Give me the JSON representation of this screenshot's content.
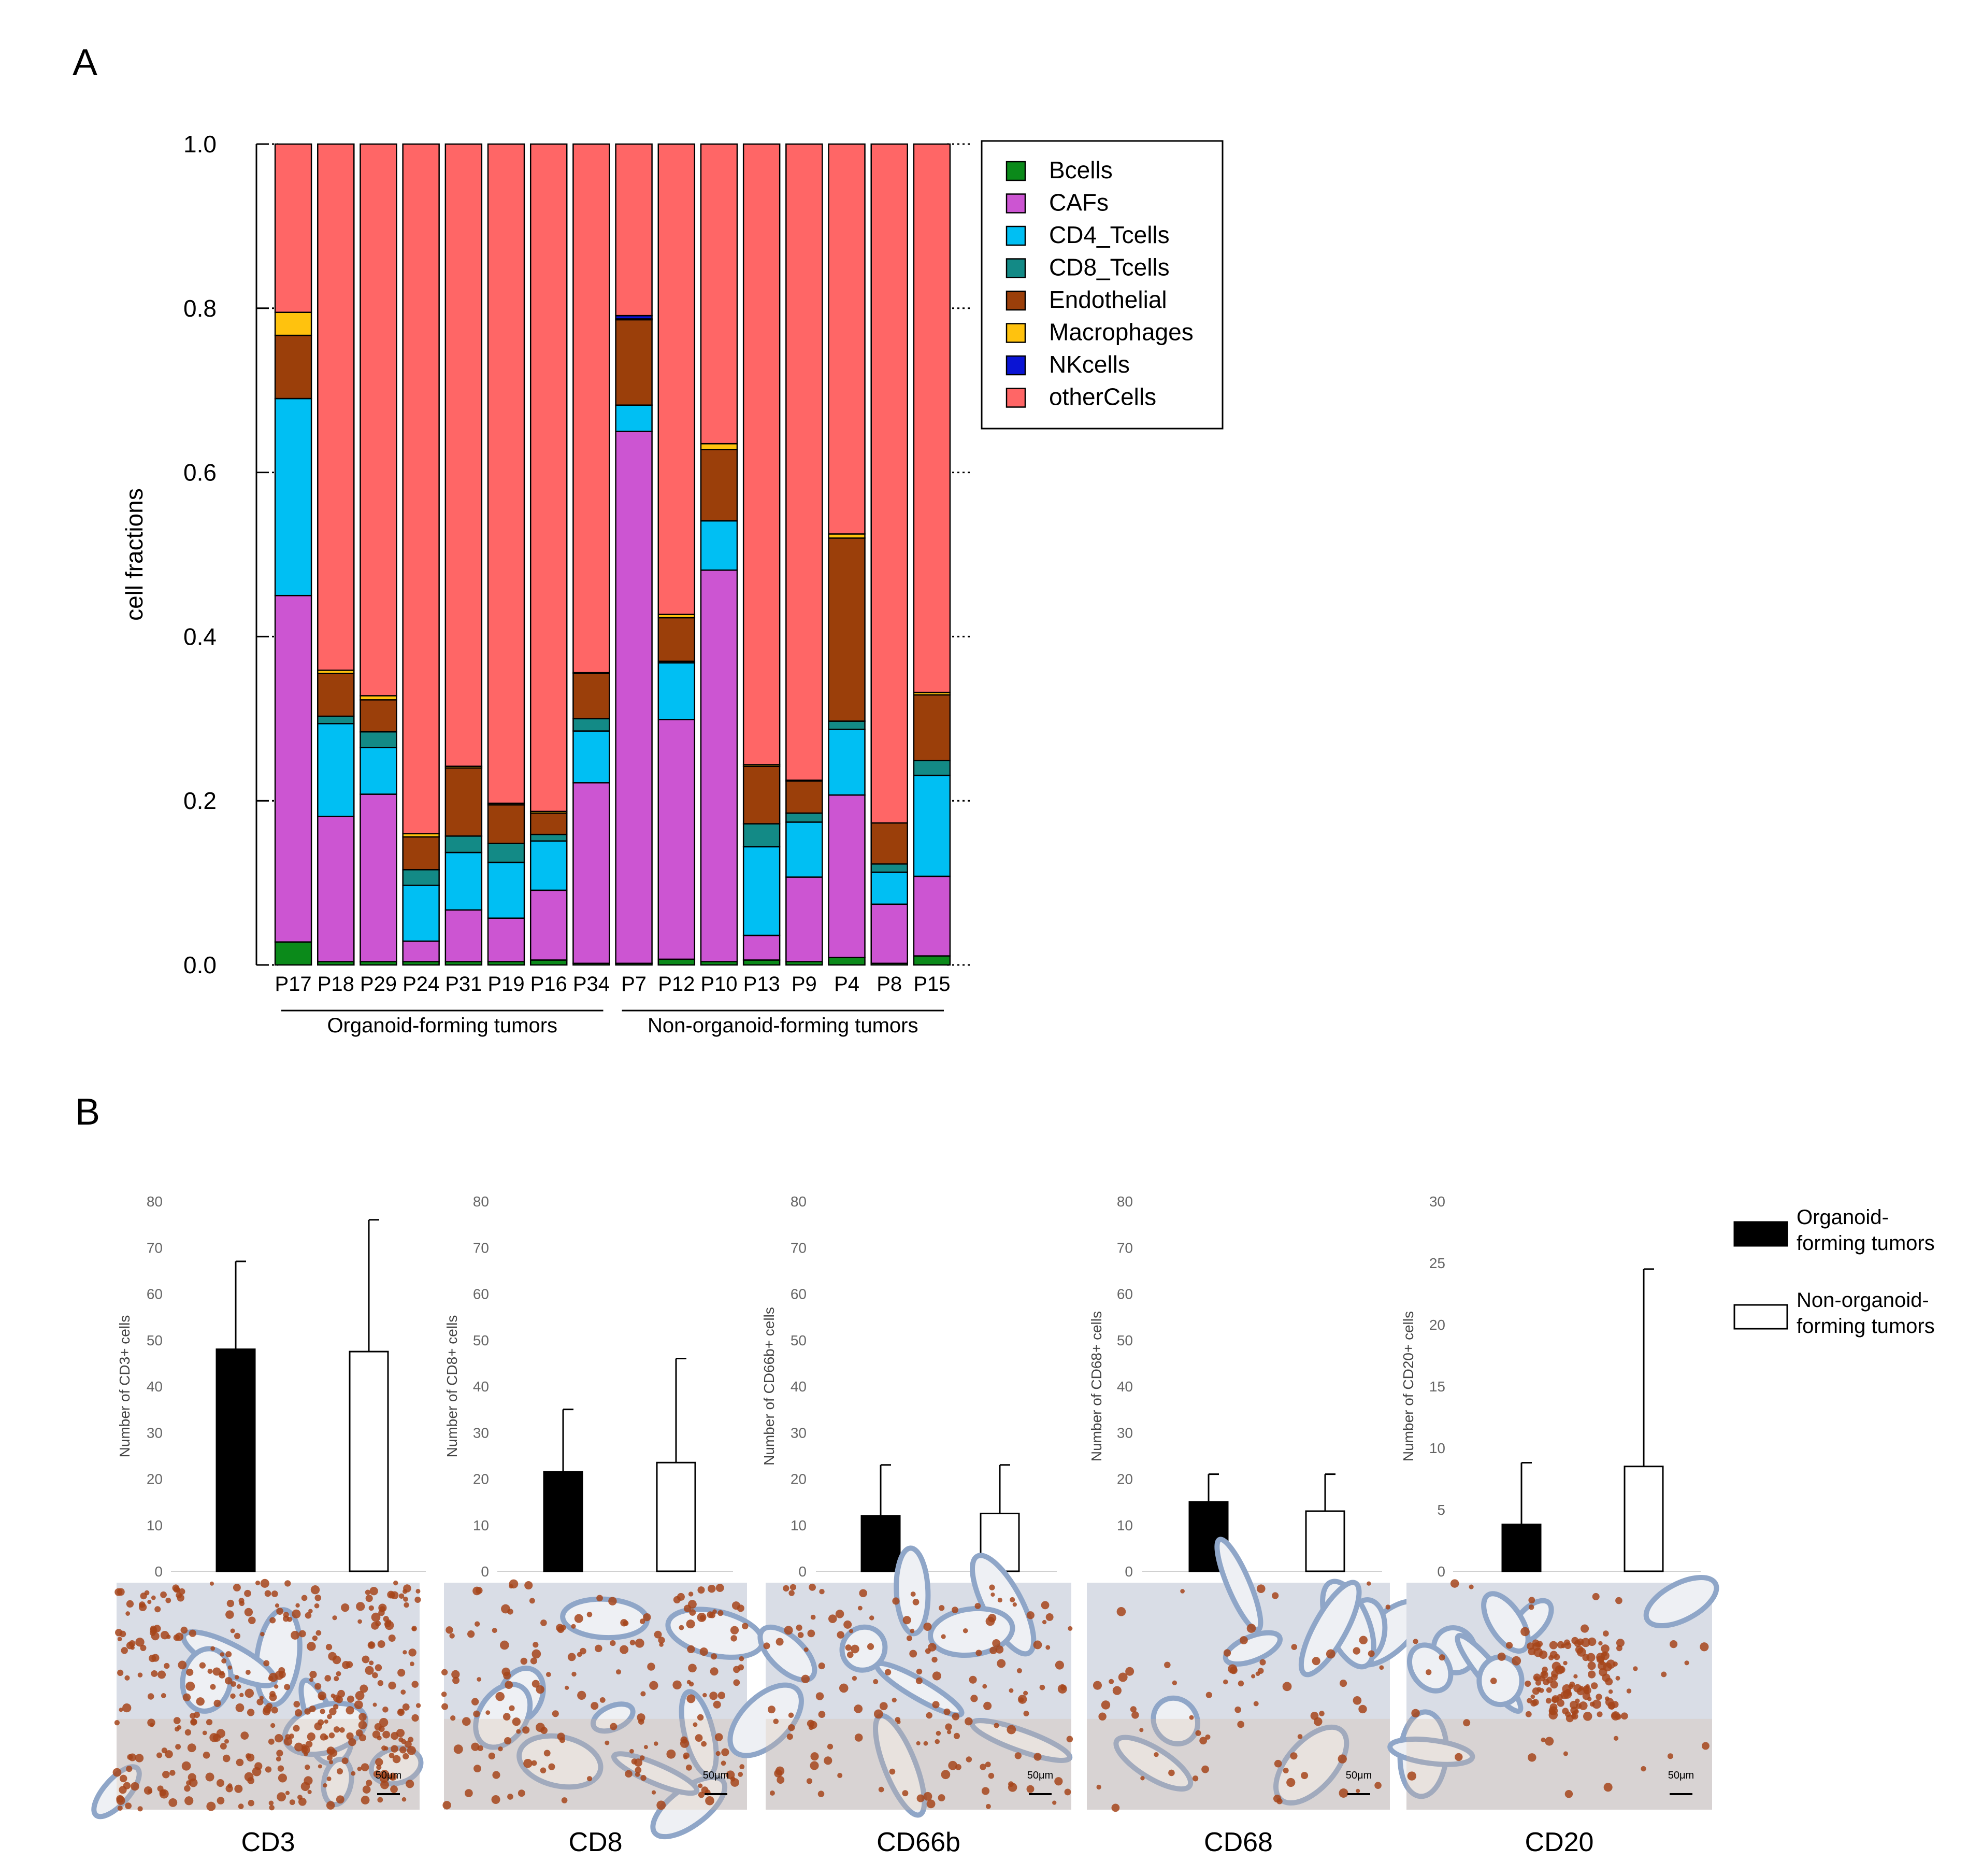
{
  "panels": {
    "a": "A",
    "b": "B"
  },
  "colors": {
    "Bcells": "#0b8a1a",
    "CAFs": "#cc55d2",
    "CD4_Tcells": "#00bff3",
    "CD8_Tcells": "#138a86",
    "Endothelial": "#9b3f0a",
    "Macrophages": "#ffc20e",
    "NKcells": "#0a14d4",
    "otherCells": "#ff6666"
  },
  "chart_data": [
    {
      "type": "bar",
      "stacked": true,
      "title": "",
      "ylabel": "cell fractions",
      "xlabel": "",
      "ylim": [
        0,
        1.0
      ],
      "yticks": [
        "0.0",
        "0.2",
        "0.4",
        "0.6",
        "0.8",
        "1.0"
      ],
      "categories": [
        "P17",
        "P18",
        "P29",
        "P24",
        "P31",
        "P19",
        "P16",
        "P34",
        "P7",
        "P12",
        "P10",
        "P13",
        "P9",
        "P4",
        "P8",
        "P15"
      ],
      "groups": [
        {
          "label": "Organoid-forming tumors",
          "from": 0,
          "to": 7
        },
        {
          "label": "Non-organoid-forming tumors",
          "from": 8,
          "to": 15
        }
      ],
      "legend_position": "top-right",
      "series": [
        {
          "name": "Bcells",
          "values": [
            0.028,
            0.004,
            0.004,
            0.004,
            0.004,
            0.004,
            0.006,
            0.002,
            0.002,
            0.007,
            0.004,
            0.006,
            0.004,
            0.009,
            0.002,
            0.011
          ]
        },
        {
          "name": "CAFs",
          "values": [
            0.422,
            0.177,
            0.204,
            0.025,
            0.063,
            0.053,
            0.085,
            0.22,
            0.648,
            0.292,
            0.477,
            0.03,
            0.103,
            0.198,
            0.072,
            0.097
          ]
        },
        {
          "name": "CD4_Tcells",
          "values": [
            0.24,
            0.113,
            0.057,
            0.068,
            0.07,
            0.068,
            0.06,
            0.063,
            0.032,
            0.069,
            0.06,
            0.108,
            0.067,
            0.08,
            0.039,
            0.123
          ]
        },
        {
          "name": "CD8_Tcells",
          "values": [
            0.0,
            0.009,
            0.019,
            0.019,
            0.02,
            0.023,
            0.008,
            0.015,
            0.0,
            0.002,
            0.0,
            0.028,
            0.011,
            0.01,
            0.01,
            0.018
          ]
        },
        {
          "name": "Endothelial",
          "values": [
            0.077,
            0.052,
            0.039,
            0.04,
            0.083,
            0.047,
            0.026,
            0.055,
            0.104,
            0.053,
            0.087,
            0.07,
            0.039,
            0.223,
            0.05,
            0.08
          ]
        },
        {
          "name": "Macrophages",
          "values": [
            0.028,
            0.004,
            0.005,
            0.004,
            0.002,
            0.002,
            0.002,
            0.001,
            0.001,
            0.004,
            0.007,
            0.002,
            0.001,
            0.005,
            0.0,
            0.003
          ]
        },
        {
          "name": "NKcells",
          "values": [
            0.0,
            0.0,
            0.0,
            0.0,
            0.0,
            0.0,
            0.0,
            0.0,
            0.004,
            0.0,
            0.0,
            0.0,
            0.0,
            0.0,
            0.0,
            0.0
          ]
        },
        {
          "name": "otherCells",
          "values": [
            0.205,
            0.641,
            0.672,
            0.84,
            0.758,
            0.803,
            0.813,
            0.644,
            0.209,
            0.573,
            0.365,
            0.756,
            0.775,
            0.475,
            0.827,
            0.668
          ]
        }
      ]
    },
    {
      "type": "bar",
      "title": "",
      "ylabel": "Number of CD3+ cells",
      "xlabel": "CD3",
      "ylim": [
        0,
        80
      ],
      "yticks": [
        "0",
        "10",
        "20",
        "30",
        "40",
        "50",
        "60",
        "70",
        "80"
      ],
      "series": [
        {
          "name": "Organoid-forming tumors",
          "value": 48,
          "error": 19
        },
        {
          "name": "Non-organoid-forming tumors",
          "value": 47.5,
          "error": 28.5
        }
      ]
    },
    {
      "type": "bar",
      "title": "",
      "ylabel": "Number of CD8+ cells",
      "xlabel": "CD8",
      "ylim": [
        0,
        80
      ],
      "yticks": [
        "0",
        "10",
        "20",
        "30",
        "40",
        "50",
        "60",
        "70",
        "80"
      ],
      "series": [
        {
          "name": "Organoid-forming tumors",
          "value": 21.5,
          "error": 13.5
        },
        {
          "name": "Non-organoid-forming tumors",
          "value": 23.5,
          "error": 22.5
        }
      ]
    },
    {
      "type": "bar",
      "title": "",
      "ylabel": "Number of CD66b+ cells",
      "xlabel": "CD66b",
      "ylim": [
        0,
        80
      ],
      "yticks": [
        "0",
        "10",
        "20",
        "30",
        "40",
        "50",
        "60",
        "70",
        "80"
      ],
      "series": [
        {
          "name": "Organoid-forming tumors",
          "value": 12,
          "error": 11
        },
        {
          "name": "Non-organoid-forming tumors",
          "value": 12.5,
          "error": 10.5
        }
      ]
    },
    {
      "type": "bar",
      "title": "",
      "ylabel": "Number of CD68+ cells",
      "xlabel": "CD68",
      "ylim": [
        0,
        80
      ],
      "yticks": [
        "0",
        "10",
        "20",
        "30",
        "40",
        "50",
        "60",
        "70",
        "80"
      ],
      "series": [
        {
          "name": "Organoid-forming tumors",
          "value": 15,
          "error": 6
        },
        {
          "name": "Non-organoid-forming tumors",
          "value": 13,
          "error": 8
        }
      ]
    },
    {
      "type": "bar",
      "title": "",
      "ylabel": "Number of CD20+ cells",
      "xlabel": "CD20",
      "ylim": [
        0,
        30
      ],
      "yticks": [
        "0",
        "5",
        "10",
        "15",
        "20",
        "25",
        "30"
      ],
      "series": [
        {
          "name": "Organoid-forming tumors",
          "value": 3.8,
          "error": 5
        },
        {
          "name": "Non-organoid-forming tumors",
          "value": 8.5,
          "error": 16
        }
      ]
    }
  ],
  "b_legend": [
    {
      "line1": "Organoid-",
      "line2": "forming tumors",
      "fill": "#000000"
    },
    {
      "line1": "Non-organoid-",
      "line2": "forming tumors",
      "fill": "#ffffff"
    }
  ],
  "scale_bar": "50μm",
  "ihc_labels": [
    "CD3",
    "CD8",
    "CD66b",
    "CD68",
    "CD20"
  ]
}
